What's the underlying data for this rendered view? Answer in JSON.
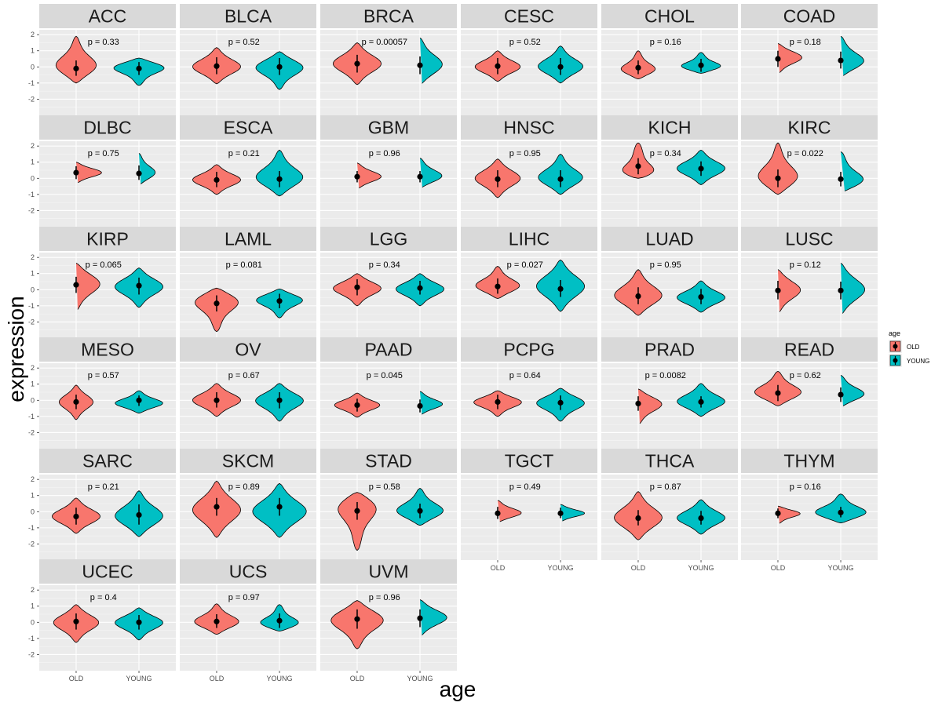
{
  "chart_data": {
    "type": "violin",
    "ylabel": "expression",
    "xlabel": "age",
    "categories": [
      "OLD",
      "YOUNG"
    ],
    "ylim": [
      -3,
      2.3
    ],
    "yticks": [
      -2,
      -1,
      0,
      1,
      2
    ],
    "ytick_labels": [
      "-2",
      "-1",
      "0",
      "1",
      "2"
    ],
    "colors": {
      "OLD": "#F8766D",
      "YOUNG": "#00BFC4",
      "panel": "#EBEBEB",
      "strip": "#D9D9D9",
      "grid": "#FFFFFF"
    },
    "legend": {
      "title": "age",
      "entries": [
        "OLD",
        "YOUNG"
      ],
      "position": "right"
    },
    "panels": [
      {
        "name": "ACC",
        "p": "p = 0.33",
        "old": {
          "median": -0.1,
          "lo": -0.55,
          "hi": 0.4,
          "min": -1.0,
          "max": 1.9,
          "peak": 0.0,
          "w": 0.75
        },
        "young": {
          "median": -0.1,
          "lo": -0.5,
          "hi": 0.3,
          "min": -1.15,
          "max": 0.55,
          "peak": 0.0,
          "w": 0.95
        }
      },
      {
        "name": "BLCA",
        "p": "p = 0.52",
        "old": {
          "median": 0.05,
          "lo": -0.45,
          "hi": 0.6,
          "min": -1.05,
          "max": 1.2,
          "peak": 0.0,
          "w": 0.85
        },
        "young": {
          "median": 0.0,
          "lo": -0.5,
          "hi": 0.55,
          "min": -1.4,
          "max": 0.95,
          "peak": 0.0,
          "w": 0.85
        }
      },
      {
        "name": "BRCA",
        "p": "p = 0.00057",
        "old": {
          "median": 0.2,
          "lo": -0.35,
          "hi": 0.75,
          "min": -1.1,
          "max": 1.5,
          "peak": 0.2,
          "w": 0.85
        },
        "young": {
          "median": 0.1,
          "lo": -0.45,
          "hi": 0.65,
          "min": -1.1,
          "max": 1.8,
          "peak": 0.1,
          "w": 0.8
        }
      },
      {
        "name": "CESC",
        "p": "p = 0.52",
        "old": {
          "median": 0.05,
          "lo": -0.45,
          "hi": 0.55,
          "min": -0.9,
          "max": 1.0,
          "peak": 0.0,
          "w": 0.8
        },
        "young": {
          "median": 0.0,
          "lo": -0.5,
          "hi": 0.55,
          "min": -1.0,
          "max": 1.3,
          "peak": 0.0,
          "w": 0.8
        }
      },
      {
        "name": "CHOL",
        "p": "p = 0.16",
        "old": {
          "median": -0.05,
          "lo": -0.45,
          "hi": 0.4,
          "min": -0.75,
          "max": 1.0,
          "peak": -0.2,
          "w": 0.65
        },
        "young": {
          "median": 0.1,
          "lo": -0.3,
          "hi": 0.5,
          "min": -0.4,
          "max": 0.9,
          "peak": 0.0,
          "w": 0.75
        }
      },
      {
        "name": "COAD",
        "p": "p = 0.18",
        "old": {
          "median": 0.5,
          "lo": 0.0,
          "hi": 1.0,
          "min": -0.4,
          "max": 1.45,
          "peak": 0.6,
          "w": 0.85
        },
        "young": {
          "median": 0.4,
          "lo": -0.1,
          "hi": 0.95,
          "min": -0.6,
          "max": 1.9,
          "peak": 0.3,
          "w": 0.85
        }
      },
      {
        "name": "DLBC",
        "p": "p = 0.75",
        "old": {
          "median": 0.35,
          "lo": -0.05,
          "hi": 0.75,
          "min": -0.3,
          "max": 1.0,
          "peak": 0.35,
          "w": 0.9
        },
        "young": {
          "median": 0.3,
          "lo": -0.1,
          "hi": 0.8,
          "min": -0.4,
          "max": 1.55,
          "peak": 0.3,
          "w": 0.6
        }
      },
      {
        "name": "ESCA",
        "p": "p = 0.21",
        "old": {
          "median": -0.1,
          "lo": -0.55,
          "hi": 0.4,
          "min": -1.0,
          "max": 0.85,
          "peak": -0.1,
          "w": 0.85
        },
        "young": {
          "median": -0.05,
          "lo": -0.55,
          "hi": 0.45,
          "min": -1.1,
          "max": 1.75,
          "peak": 0.0,
          "w": 0.85
        }
      },
      {
        "name": "GBM",
        "p": "p = 0.96",
        "old": {
          "median": 0.1,
          "lo": -0.25,
          "hi": 0.45,
          "min": -0.65,
          "max": 0.95,
          "peak": 0.1,
          "w": 0.85
        },
        "young": {
          "median": 0.1,
          "lo": -0.25,
          "hi": 0.45,
          "min": -0.6,
          "max": 1.25,
          "peak": 0.1,
          "w": 0.8
        }
      },
      {
        "name": "HNSC",
        "p": "p = 0.95",
        "old": {
          "median": -0.05,
          "lo": -0.55,
          "hi": 0.5,
          "min": -1.2,
          "max": 1.2,
          "peak": 0.0,
          "w": 0.8
        },
        "young": {
          "median": -0.05,
          "lo": -0.55,
          "hi": 0.5,
          "min": -1.0,
          "max": 1.5,
          "peak": 0.0,
          "w": 0.8
        }
      },
      {
        "name": "KICH",
        "p": "p = 0.34",
        "old": {
          "median": 0.75,
          "lo": 0.25,
          "hi": 1.25,
          "min": 0.0,
          "max": 2.2,
          "peak": 0.3,
          "w": 0.75
        },
        "young": {
          "median": 0.6,
          "lo": 0.15,
          "hi": 1.05,
          "min": -0.4,
          "max": 1.75,
          "peak": 0.6,
          "w": 0.85
        }
      },
      {
        "name": "KIRC",
        "p": "p = 0.022",
        "old": {
          "median": 0.0,
          "lo": -0.55,
          "hi": 0.55,
          "min": -1.0,
          "max": 2.2,
          "peak": 0.0,
          "w": 0.75
        },
        "young": {
          "median": -0.05,
          "lo": -0.5,
          "hi": 0.4,
          "min": -0.85,
          "max": 1.65,
          "peak": -0.2,
          "w": 0.9
        }
      },
      {
        "name": "KIRP",
        "p": "p = 0.065",
        "old": {
          "median": 0.3,
          "lo": -0.2,
          "hi": 0.8,
          "min": -1.3,
          "max": 1.65,
          "peak": 0.4,
          "w": 0.85
        },
        "young": {
          "median": 0.25,
          "lo": -0.3,
          "hi": 0.75,
          "min": -1.1,
          "max": 1.35,
          "peak": 0.2,
          "w": 0.85
        }
      },
      {
        "name": "LAML",
        "p": "p = 0.081",
        "old": {
          "median": -0.85,
          "lo": -1.35,
          "hi": -0.35,
          "min": -2.6,
          "max": 0.1,
          "peak": -0.65,
          "w": 0.85
        },
        "young": {
          "median": -0.7,
          "lo": -1.15,
          "hi": -0.25,
          "min": -1.75,
          "max": 0.05,
          "peak": -0.6,
          "w": 0.85
        }
      },
      {
        "name": "LGG",
        "p": "p = 0.34",
        "old": {
          "median": 0.15,
          "lo": -0.35,
          "hi": 0.65,
          "min": -1.0,
          "max": 1.0,
          "peak": 0.1,
          "w": 0.85
        },
        "young": {
          "median": 0.1,
          "lo": -0.3,
          "hi": 0.55,
          "min": -1.0,
          "max": 1.0,
          "peak": 0.05,
          "w": 0.85
        }
      },
      {
        "name": "LIHC",
        "p": "p = 0.027",
        "old": {
          "median": 0.2,
          "lo": -0.25,
          "hi": 0.7,
          "min": -0.55,
          "max": 1.45,
          "peak": 0.2,
          "w": 0.8
        },
        "young": {
          "median": 0.05,
          "lo": -0.45,
          "hi": 0.6,
          "min": -1.35,
          "max": 1.85,
          "peak": 0.2,
          "w": 0.85
        }
      },
      {
        "name": "LUAD",
        "p": "p = 0.95",
        "old": {
          "median": -0.4,
          "lo": -0.9,
          "hi": 0.15,
          "min": -1.6,
          "max": 1.25,
          "peak": -0.4,
          "w": 0.85
        },
        "young": {
          "median": -0.45,
          "lo": -0.9,
          "hi": 0.05,
          "min": -1.4,
          "max": 0.55,
          "peak": -0.5,
          "w": 0.85
        }
      },
      {
        "name": "LUSC",
        "p": "p = 0.12",
        "old": {
          "median": -0.05,
          "lo": -0.6,
          "hi": 0.55,
          "min": -1.45,
          "max": 1.25,
          "peak": 0.0,
          "w": 0.8
        },
        "young": {
          "median": -0.05,
          "lo": -0.6,
          "hi": 0.5,
          "min": -1.55,
          "max": 1.65,
          "peak": 0.0,
          "w": 0.85
        }
      },
      {
        "name": "MESO",
        "p": "p = 0.57",
        "old": {
          "median": -0.1,
          "lo": -0.55,
          "hi": 0.35,
          "min": -1.2,
          "max": 0.95,
          "peak": -0.1,
          "w": 0.6
        },
        "young": {
          "median": 0.0,
          "lo": -0.35,
          "hi": 0.3,
          "min": -0.8,
          "max": 0.6,
          "peak": -0.2,
          "w": 0.85
        }
      },
      {
        "name": "OV",
        "p": "p = 0.67",
        "old": {
          "median": 0.0,
          "lo": -0.45,
          "hi": 0.5,
          "min": -1.0,
          "max": 1.05,
          "peak": 0.0,
          "w": 0.85
        },
        "young": {
          "median": 0.0,
          "lo": -0.5,
          "hi": 0.5,
          "min": -1.3,
          "max": 1.05,
          "peak": 0.0,
          "w": 0.85
        }
      },
      {
        "name": "PAAD",
        "p": "p = 0.045",
        "old": {
          "median": -0.3,
          "lo": -0.7,
          "hi": 0.1,
          "min": -1.05,
          "max": 0.45,
          "peak": -0.3,
          "w": 0.8
        },
        "young": {
          "median": -0.35,
          "lo": -0.75,
          "hi": 0.05,
          "min": -0.9,
          "max": 0.55,
          "peak": -0.25,
          "w": 0.8
        }
      },
      {
        "name": "PCPG",
        "p": "p = 0.64",
        "old": {
          "median": -0.1,
          "lo": -0.55,
          "hi": 0.35,
          "min": -1.0,
          "max": 0.6,
          "peak": -0.1,
          "w": 0.85
        },
        "young": {
          "median": -0.15,
          "lo": -0.6,
          "hi": 0.3,
          "min": -1.3,
          "max": 0.75,
          "peak": -0.15,
          "w": 0.85
        }
      },
      {
        "name": "PRAD",
        "p": "p = 0.0082",
        "old": {
          "median": -0.2,
          "lo": -0.65,
          "hi": 0.25,
          "min": -1.5,
          "max": 0.7,
          "peak": -0.2,
          "w": 0.85
        },
        "young": {
          "median": -0.1,
          "lo": -0.45,
          "hi": 0.25,
          "min": -1.0,
          "max": 1.05,
          "peak": -0.1,
          "w": 0.85
        }
      },
      {
        "name": "READ",
        "p": "p = 0.62",
        "old": {
          "median": 0.45,
          "lo": -0.05,
          "hi": 0.95,
          "min": -0.35,
          "max": 1.8,
          "peak": 0.45,
          "w": 0.85
        },
        "young": {
          "median": 0.35,
          "lo": -0.1,
          "hi": 0.8,
          "min": -0.4,
          "max": 1.55,
          "peak": 0.35,
          "w": 0.85
        }
      },
      {
        "name": "SARC",
        "p": "p = 0.21",
        "old": {
          "median": -0.3,
          "lo": -0.8,
          "hi": 0.25,
          "min": -1.35,
          "max": 0.85,
          "peak": -0.3,
          "w": 0.85
        },
        "young": {
          "median": -0.2,
          "lo": -0.8,
          "hi": 0.45,
          "min": -1.55,
          "max": 1.3,
          "peak": -0.3,
          "w": 0.85
        }
      },
      {
        "name": "SKCM",
        "p": "p = 0.89",
        "old": {
          "median": 0.3,
          "lo": -0.25,
          "hi": 0.85,
          "min": -1.6,
          "max": 1.9,
          "peak": 0.1,
          "w": 0.85
        },
        "young": {
          "median": 0.3,
          "lo": -0.25,
          "hi": 0.85,
          "min": -1.6,
          "max": 1.75,
          "peak": 0.0,
          "w": 0.95
        }
      },
      {
        "name": "STAD",
        "p": "p = 0.58",
        "old": {
          "median": 0.05,
          "lo": -0.5,
          "hi": 0.6,
          "min": -2.4,
          "max": 1.2,
          "peak": 0.4,
          "w": 0.8
        },
        "young": {
          "median": 0.05,
          "lo": -0.4,
          "hi": 0.5,
          "min": -0.85,
          "max": 1.45,
          "peak": 0.0,
          "w": 0.85
        }
      },
      {
        "name": "TGCT",
        "p": "p = 0.49",
        "old": {
          "median": -0.1,
          "lo": -0.45,
          "hi": 0.3,
          "min": -0.65,
          "max": 0.7,
          "peak": -0.1,
          "w": 0.85
        },
        "young": {
          "median": -0.1,
          "lo": -0.4,
          "hi": 0.25,
          "min": -0.6,
          "max": 0.45,
          "peak": -0.1,
          "w": 0.85
        }
      },
      {
        "name": "THCA",
        "p": "p = 0.87",
        "old": {
          "median": -0.4,
          "lo": -0.85,
          "hi": 0.1,
          "min": -1.75,
          "max": 1.25,
          "peak": -0.4,
          "w": 0.85
        },
        "young": {
          "median": -0.4,
          "lo": -0.8,
          "hi": 0.05,
          "min": -1.4,
          "max": 0.75,
          "peak": -0.4,
          "w": 0.85
        }
      },
      {
        "name": "THYM",
        "p": "p = 0.16",
        "old": {
          "median": -0.1,
          "lo": -0.4,
          "hi": 0.2,
          "min": -0.75,
          "max": 0.35,
          "peak": -0.1,
          "w": 0.8
        },
        "young": {
          "median": -0.05,
          "lo": -0.35,
          "hi": 0.3,
          "min": -0.7,
          "max": 1.1,
          "peak": -0.1,
          "w": 0.95
        }
      },
      {
        "name": "UCEC",
        "p": "p = 0.4",
        "old": {
          "median": 0.05,
          "lo": -0.45,
          "hi": 0.55,
          "min": -1.25,
          "max": 1.1,
          "peak": 0.0,
          "w": 0.8
        },
        "young": {
          "median": 0.0,
          "lo": -0.45,
          "hi": 0.45,
          "min": -1.1,
          "max": 0.9,
          "peak": 0.0,
          "w": 0.85
        }
      },
      {
        "name": "UCS",
        "p": "p = 0.97",
        "old": {
          "median": 0.05,
          "lo": -0.35,
          "hi": 0.5,
          "min": -0.75,
          "max": 1.15,
          "peak": 0.0,
          "w": 0.8
        },
        "young": {
          "median": 0.1,
          "lo": -0.35,
          "hi": 0.55,
          "min": -0.55,
          "max": 1.1,
          "peak": -0.1,
          "w": 0.75
        }
      },
      {
        "name": "UVM",
        "p": "p = 0.96",
        "old": {
          "median": 0.2,
          "lo": -0.4,
          "hi": 0.8,
          "min": -1.65,
          "max": 1.35,
          "peak": 0.2,
          "w": 0.95
        },
        "young": {
          "median": 0.25,
          "lo": -0.3,
          "hi": 0.8,
          "min": -0.85,
          "max": 1.4,
          "peak": 0.3,
          "w": 0.95
        }
      }
    ]
  }
}
